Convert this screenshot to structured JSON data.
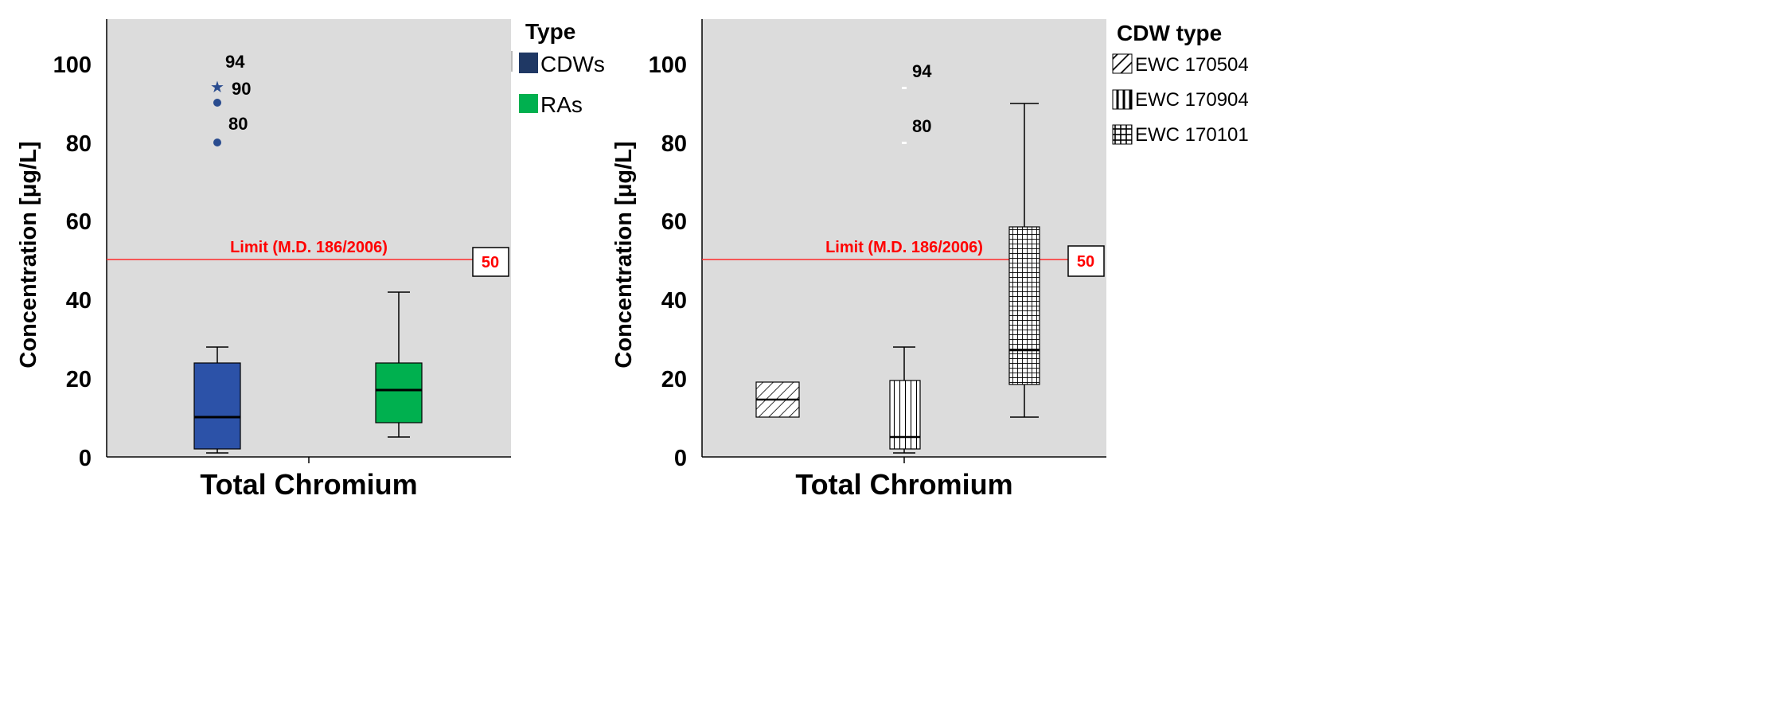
{
  "colors": {
    "plot_bg": "#dcdcdc",
    "cdws": "#2c52a8",
    "ras": "#00b04f",
    "legend_cdws": "#1f3864",
    "legend_ras": "#00b04f",
    "limit_line": "#ff2b2b",
    "limit_text": "#ff0000",
    "outlier_point": "#2a4c8f",
    "hatch_fill": "#ffffff"
  },
  "chart_data": [
    {
      "type": "box",
      "title": "",
      "xlabel": "Total Chromium",
      "ylabel": "Concentration [μg/L]",
      "ylim": [
        0,
        110
      ],
      "yticks": [
        "0",
        "20",
        "40",
        "60",
        "80",
        "100"
      ],
      "ytick_values": [
        0,
        20,
        40,
        60,
        80,
        100
      ],
      "legend": {
        "title": "Type",
        "items": [
          {
            "label": "CDWs",
            "icon": "solid-swatch-icon"
          },
          {
            "label": "RAs",
            "icon": "solid-swatch-icon"
          }
        ]
      },
      "limit": {
        "label": "Limit (M.D. 186/2006)",
        "value": 50,
        "value_label": "50"
      },
      "series": [
        {
          "name": "CDWs",
          "min": 1,
          "q1": 2,
          "median": 10,
          "q3": 24,
          "max": 28,
          "outliers": [
            {
              "value": 94,
              "label": "94",
              "marker": "star"
            },
            {
              "value": 90,
              "label": "90",
              "marker": "circle"
            },
            {
              "value": 80,
              "label": "80",
              "marker": "circle"
            }
          ]
        },
        {
          "name": "RAs",
          "min": 5,
          "q1": 8.5,
          "median": 17,
          "q3": 24,
          "max": 42,
          "outliers": []
        }
      ]
    },
    {
      "type": "box",
      "title": "",
      "xlabel": "Total Chromium",
      "ylabel": "Concentration [μg/L]",
      "ylim": [
        0,
        110
      ],
      "yticks": [
        "0",
        "20",
        "40",
        "60",
        "80",
        "100"
      ],
      "ytick_values": [
        0,
        20,
        40,
        60,
        80,
        100
      ],
      "legend": {
        "title": "CDW type",
        "items": [
          {
            "label": "EWC 170504",
            "icon": "diagonal-hatch-icon"
          },
          {
            "label": "EWC 170904",
            "icon": "vertical-stripe-icon"
          },
          {
            "label": "EWC 170101",
            "icon": "grid-hatch-icon"
          }
        ]
      },
      "limit": {
        "label": "Limit (M.D. 186/2006)",
        "value": 50,
        "value_label": "50"
      },
      "series": [
        {
          "name": "EWC 170504",
          "min": 10,
          "q1": 10,
          "median": 14.5,
          "q3": 19,
          "max": 19,
          "outliers": []
        },
        {
          "name": "EWC 170904",
          "min": 1,
          "q1": 2,
          "median": 5,
          "q3": 19.5,
          "max": 28,
          "outliers": [
            {
              "value": 94,
              "label": "94",
              "marker": "dot"
            },
            {
              "value": 80,
              "label": "80",
              "marker": "dot"
            }
          ]
        },
        {
          "name": "EWC 170101",
          "min": 10,
          "q1": 18.5,
          "median": 27,
          "q3": 58.5,
          "max": 90,
          "outliers": []
        }
      ]
    }
  ]
}
